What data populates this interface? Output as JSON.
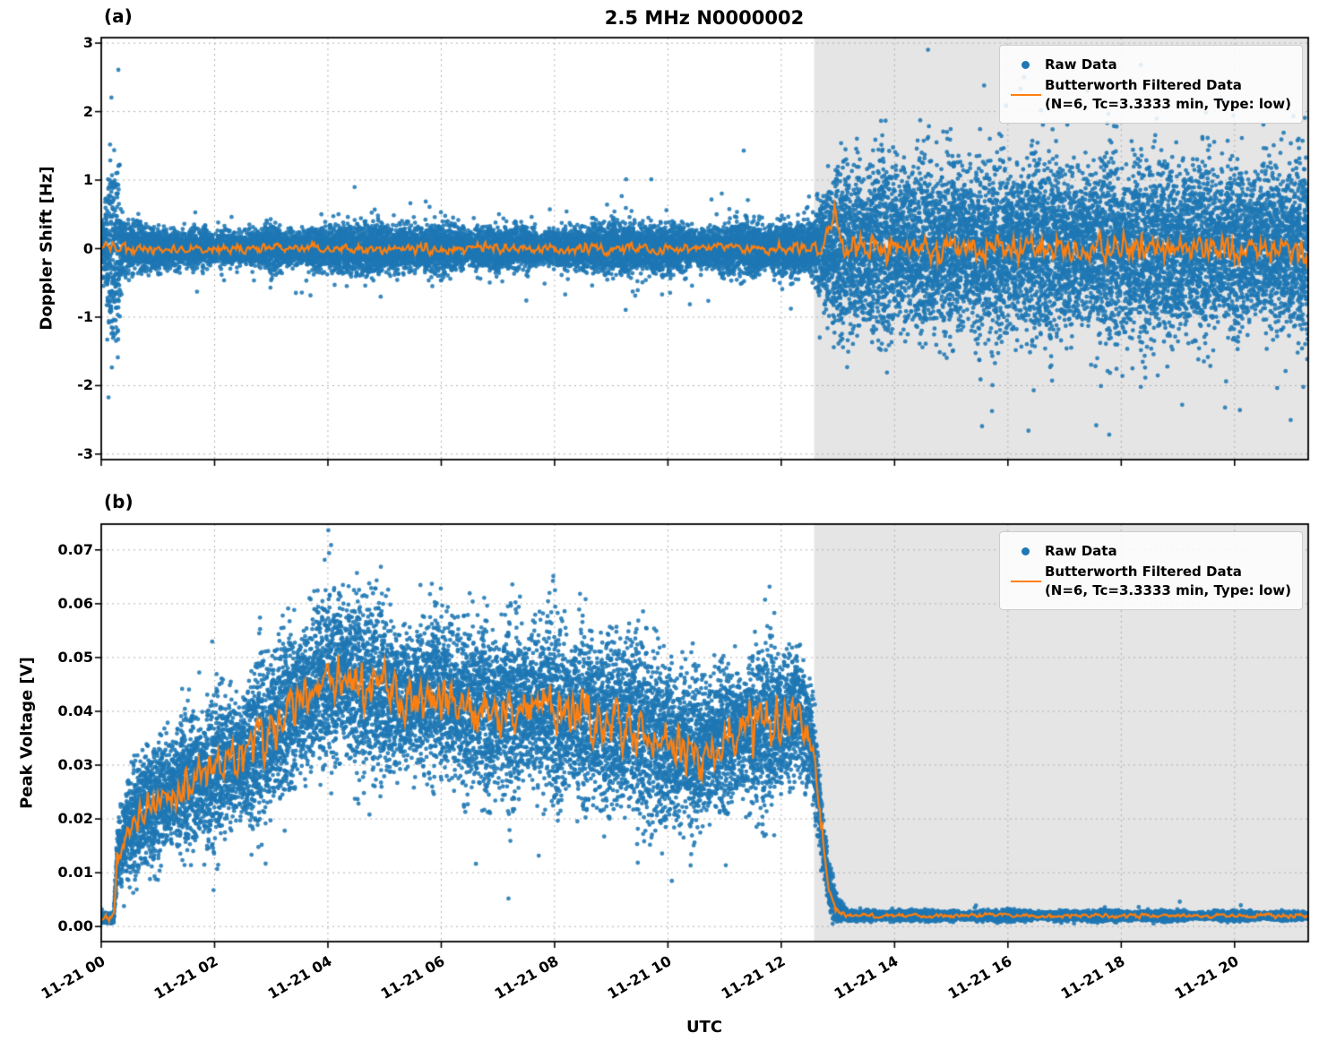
{
  "legend": {
    "raw_label": "Raw Data",
    "filtered_label": "Butterworth Filtered Data",
    "filtered_params": "(N=6, Tc=3.3333 min, Type: low)"
  },
  "colors": {
    "raw": "#1f77b4",
    "filtered": "#ff7f0e",
    "shade": "#e5e5e5",
    "grid": "#b0b0b0",
    "spine": "#000000"
  },
  "chart_data": {
    "type": "scatter",
    "title": "2.5 MHz N0000002",
    "xlabel": "UTC",
    "grid": "dotted",
    "legend_position": "upper right",
    "x_axis": {
      "hours_range": [
        0,
        21.3
      ],
      "tick_hours": [
        0,
        2,
        4,
        6,
        8,
        10,
        12,
        14,
        16,
        18,
        20
      ],
      "tick_labels": [
        "11-21 00",
        "11-21 02",
        "11-21 04",
        "11-21 06",
        "11-21 08",
        "11-21 10",
        "11-21 12",
        "11-21 14",
        "11-21 16",
        "11-21 18",
        "11-21 20"
      ]
    },
    "night_shade_hours": [
      12.58,
      21.3
    ],
    "panels": [
      {
        "tag": "(a)",
        "ylabel": "Doppler Shift [Hz]",
        "seed": 42,
        "ylim": [
          -3.08,
          3.08
        ],
        "yticks": [
          -3,
          -2,
          -1,
          0,
          1,
          2,
          3
        ],
        "ytick_labels": [
          "-3",
          "-2",
          "-1",
          "0",
          "1",
          "2",
          "3"
        ],
        "raw": {
          "name": "Raw Data",
          "points_per_hour": 1150,
          "dot_radius": 2.4,
          "mean_points": [
            [
              0,
              0
            ],
            [
              21.3,
              0
            ]
          ],
          "spread_points": [
            [
              0,
              0.3
            ],
            [
              0.05,
              0.4
            ],
            [
              0.1,
              1.05
            ],
            [
              0.3,
              1.05
            ],
            [
              0.38,
              0.34
            ],
            [
              0.8,
              0.24
            ],
            [
              2,
              0.22
            ],
            [
              4,
              0.25
            ],
            [
              4.9,
              0.32
            ],
            [
              5.2,
              0.24
            ],
            [
              6,
              0.26
            ],
            [
              7,
              0.22
            ],
            [
              8,
              0.24
            ],
            [
              9.4,
              0.28
            ],
            [
              10,
              0.24
            ],
            [
              11,
              0.27
            ],
            [
              11.8,
              0.3
            ],
            [
              12.45,
              0.32
            ],
            [
              12.7,
              0.55
            ],
            [
              13.05,
              0.9
            ],
            [
              13.4,
              1.02
            ],
            [
              15,
              1.05
            ],
            [
              18,
              1.05
            ],
            [
              21.3,
              1.03
            ]
          ],
          "outlier_rate": 0.03,
          "outlier_mult": 1.0,
          "clip_low": null,
          "clip_high": null
        },
        "filtered": {
          "name": "Butterworth Filtered Data (N=6, Tc=3.3333 min, Type: low)",
          "base_points": [
            [
              0,
              0
            ],
            [
              12.75,
              0
            ],
            [
              12.85,
              0.3
            ],
            [
              12.95,
              0.55
            ],
            [
              13.05,
              0.2
            ],
            [
              13.15,
              0
            ],
            [
              21.3,
              0
            ]
          ],
          "amp_points": [
            [
              0,
              0.07
            ],
            [
              0.15,
              0.13
            ],
            [
              0.5,
              0.07
            ],
            [
              12.5,
              0.08
            ],
            [
              13.0,
              0.16
            ],
            [
              13.3,
              0.2
            ],
            [
              21.3,
              0.2
            ]
          ]
        }
      },
      {
        "tag": "(b)",
        "ylabel": "Peak Voltage [V]",
        "seed": 7,
        "ylim": [
          -0.0028,
          0.0748
        ],
        "yticks": [
          0,
          0.01,
          0.02,
          0.03,
          0.04,
          0.05,
          0.06,
          0.07
        ],
        "ytick_labels": [
          "0.00",
          "0.01",
          "0.02",
          "0.03",
          "0.04",
          "0.05",
          "0.06",
          "0.07"
        ],
        "raw": {
          "name": "Raw Data",
          "points_per_hour": 1050,
          "dot_radius": 2.4,
          "mean_points": [
            [
              0,
              0.0015
            ],
            [
              0.22,
              0.0015
            ],
            [
              0.28,
              0.013
            ],
            [
              0.5,
              0.019
            ],
            [
              0.8,
              0.022
            ],
            [
              1.2,
              0.025
            ],
            [
              1.6,
              0.027
            ],
            [
              2,
              0.029
            ],
            [
              2.5,
              0.032
            ],
            [
              3,
              0.036
            ],
            [
              3.4,
              0.041
            ],
            [
              3.8,
              0.045
            ],
            [
              4.2,
              0.047
            ],
            [
              4.6,
              0.045
            ],
            [
              5,
              0.044
            ],
            [
              5.5,
              0.042
            ],
            [
              6,
              0.044
            ],
            [
              6.5,
              0.041
            ],
            [
              7,
              0.04
            ],
            [
              7.5,
              0.041
            ],
            [
              8,
              0.04
            ],
            [
              8.5,
              0.039
            ],
            [
              9,
              0.038
            ],
            [
              9.5,
              0.036
            ],
            [
              10,
              0.034
            ],
            [
              10.5,
              0.032
            ],
            [
              11,
              0.035
            ],
            [
              11.5,
              0.037
            ],
            [
              12,
              0.038
            ],
            [
              12.3,
              0.04
            ],
            [
              12.55,
              0.034
            ],
            [
              12.7,
              0.018
            ],
            [
              12.85,
              0.007
            ],
            [
              13,
              0.003
            ],
            [
              13.2,
              0.002
            ],
            [
              21.3,
              0.002
            ]
          ],
          "spread_points": [
            [
              0,
              0.0007
            ],
            [
              0.22,
              0.0007
            ],
            [
              0.3,
              0.005
            ],
            [
              0.5,
              0.007
            ],
            [
              1,
              0.009
            ],
            [
              2,
              0.011
            ],
            [
              3,
              0.012
            ],
            [
              4,
              0.013
            ],
            [
              5,
              0.013
            ],
            [
              7,
              0.013
            ],
            [
              9,
              0.013
            ],
            [
              11,
              0.012
            ],
            [
              12.3,
              0.012
            ],
            [
              12.6,
              0.008
            ],
            [
              12.8,
              0.004
            ],
            [
              13,
              0.0015
            ],
            [
              13.2,
              0.0007
            ],
            [
              21.3,
              0.0006
            ]
          ],
          "outlier_rate": 0.02,
          "outlier_mult": 0.5,
          "clip_low": 0.0005,
          "clip_high": null
        },
        "filtered": {
          "name": "Butterworth Filtered Data (N=6, Tc=3.3333 min, Type: low)",
          "base_points": [
            [
              0,
              0.0015
            ],
            [
              0.22,
              0.0015
            ],
            [
              0.28,
              0.013
            ],
            [
              0.5,
              0.019
            ],
            [
              0.8,
              0.022
            ],
            [
              1.2,
              0.025
            ],
            [
              1.6,
              0.027
            ],
            [
              2,
              0.029
            ],
            [
              2.5,
              0.032
            ],
            [
              3,
              0.036
            ],
            [
              3.4,
              0.041
            ],
            [
              3.8,
              0.045
            ],
            [
              4.2,
              0.047
            ],
            [
              4.6,
              0.045
            ],
            [
              5,
              0.044
            ],
            [
              5.5,
              0.042
            ],
            [
              6,
              0.044
            ],
            [
              6.5,
              0.041
            ],
            [
              7,
              0.04
            ],
            [
              7.5,
              0.041
            ],
            [
              8,
              0.04
            ],
            [
              8.5,
              0.039
            ],
            [
              9,
              0.038
            ],
            [
              9.5,
              0.036
            ],
            [
              10,
              0.034
            ],
            [
              10.5,
              0.032
            ],
            [
              11,
              0.035
            ],
            [
              11.5,
              0.037
            ],
            [
              12,
              0.038
            ],
            [
              12.3,
              0.04
            ],
            [
              12.55,
              0.034
            ],
            [
              12.7,
              0.018
            ],
            [
              12.85,
              0.007
            ],
            [
              13,
              0.003
            ],
            [
              13.2,
              0.002
            ],
            [
              21.3,
              0.002
            ]
          ],
          "amp_points": [
            [
              0,
              0.0003
            ],
            [
              0.3,
              0.002
            ],
            [
              1,
              0.003
            ],
            [
              2,
              0.0035
            ],
            [
              4,
              0.0045
            ],
            [
              8,
              0.0045
            ],
            [
              12,
              0.0045
            ],
            [
              12.6,
              0.003
            ],
            [
              12.9,
              0.0015
            ],
            [
              13.2,
              0.0004
            ],
            [
              21.3,
              0.0004
            ]
          ]
        }
      }
    ]
  }
}
